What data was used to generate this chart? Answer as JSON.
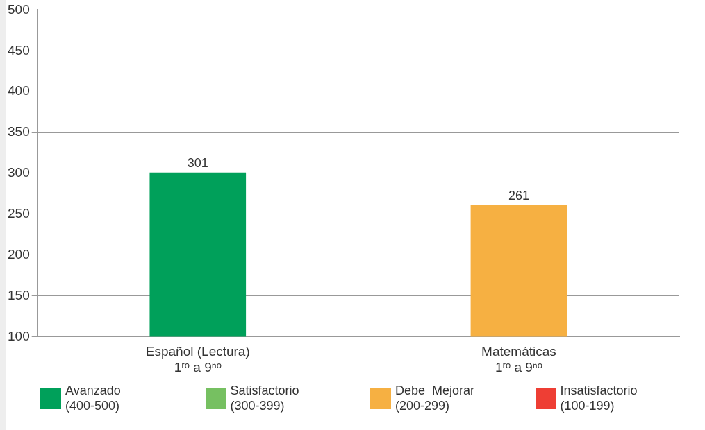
{
  "chart_data": {
    "type": "bar",
    "categories": [
      "Español (Lectura)\n1ʳᵒ a 9ⁿᵒ",
      "Matemáticas\n1ʳᵒ a 9ⁿᵒ"
    ],
    "series": [
      {
        "name": "Avanzado\n(400-500)",
        "color": "#00a05a",
        "values": [
          301,
          null
        ]
      },
      {
        "name": "Satisfactorio\n(300-399)",
        "color": "#76c061",
        "values": [
          null,
          null
        ]
      },
      {
        "name": "Debe  Mejorar\n(200-299)",
        "color": "#f6b042",
        "values": [
          null,
          261
        ]
      },
      {
        "name": "Insatisfactorio\n(100-199)",
        "color": "#ee3e34",
        "values": [
          null,
          null
        ]
      }
    ],
    "stacked": true,
    "ylim": [
      100,
      500
    ],
    "yticks": [
      100,
      150,
      200,
      250,
      300,
      350,
      400,
      450,
      500
    ],
    "grid": "y",
    "legend": "bottom",
    "data_labels": true
  }
}
